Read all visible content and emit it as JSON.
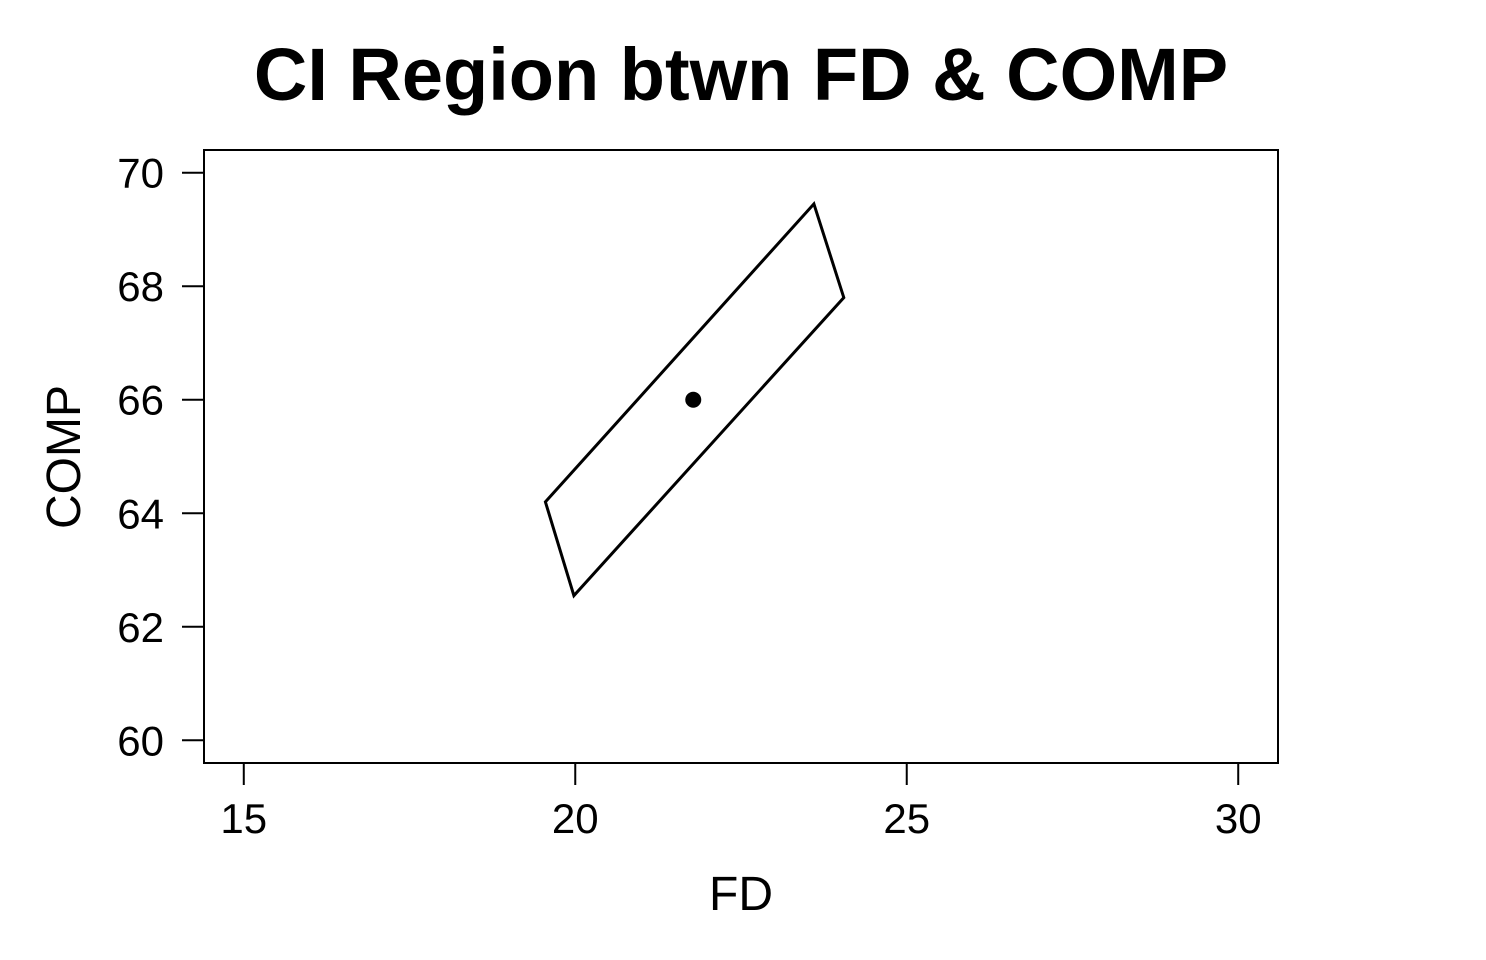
{
  "chart_data": {
    "type": "scatter",
    "title": "CI Region btwn FD & COMP",
    "xlabel": "FD",
    "ylabel": "COMP",
    "xlim": [
      14.4,
      30.6
    ],
    "ylim": [
      59.6,
      70.4
    ],
    "x_ticks": [
      15,
      20,
      25,
      30
    ],
    "x_tick_labels": [
      "15",
      "20",
      "25",
      "30"
    ],
    "y_ticks": [
      60,
      62,
      64,
      66,
      68,
      70
    ],
    "y_tick_labels": [
      "60",
      "62",
      "64",
      66,
      "68",
      "70"
    ],
    "grid": false,
    "legend": "none",
    "series": [
      {
        "kind": "polygon",
        "points": [
          [
            19.55,
            64.2
          ],
          [
            23.6,
            69.45
          ],
          [
            24.05,
            67.8
          ],
          [
            19.98,
            62.55
          ]
        ]
      },
      {
        "kind": "point",
        "points": [
          [
            21.78,
            66.0
          ]
        ]
      }
    ],
    "colors": {
      "line": "#000000",
      "point": "#000000",
      "background": "#ffffff"
    }
  }
}
